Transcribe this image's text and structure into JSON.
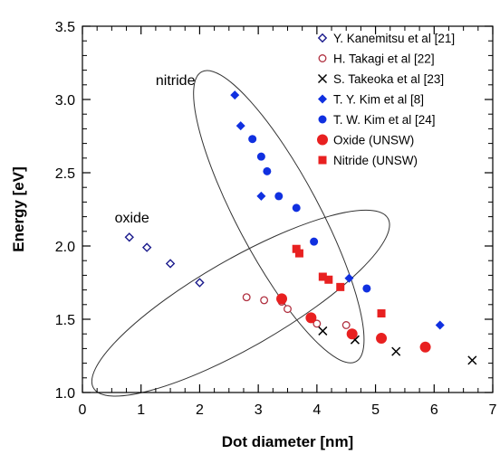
{
  "chart_data": {
    "type": "scatter",
    "xlabel": "Dot diameter [nm]",
    "ylabel": "Energy [eV]",
    "xlim": [
      0,
      7
    ],
    "ylim": [
      1.0,
      3.5
    ],
    "xticks": [
      "0",
      "1",
      "2",
      "3",
      "4",
      "5",
      "6",
      "7"
    ],
    "yticks": [
      "1.0",
      "1.5",
      "2.0",
      "2.5",
      "3.0",
      "3.5"
    ],
    "grid": false,
    "legend_position": "top-right",
    "annotations": [
      {
        "text": "nitride",
        "x": 1.25,
        "y": 3.1
      },
      {
        "text": "oxide",
        "x": 0.55,
        "y": 2.16
      }
    ],
    "groupings": [
      {
        "label": "nitride",
        "cx": 3.35,
        "cy": 2.2,
        "rx": 0.7,
        "ry": 1.12,
        "angle_deg": -28
      },
      {
        "label": "oxide",
        "cx": 2.7,
        "cy": 1.61,
        "rx": 2.9,
        "ry": 0.3,
        "angle_deg": -30
      }
    ],
    "series": [
      {
        "name": "Y. Kanemitsu et al [21]",
        "marker": "diamond-open",
        "color": "#1a1a8c",
        "points": [
          [
            0.8,
            2.06
          ],
          [
            1.1,
            1.99
          ],
          [
            1.5,
            1.88
          ],
          [
            2.0,
            1.75
          ]
        ]
      },
      {
        "name": "H. Takagi et al [22]",
        "marker": "circle-open",
        "color": "#b03040",
        "points": [
          [
            2.8,
            1.65
          ],
          [
            3.1,
            1.63
          ],
          [
            3.4,
            1.62
          ],
          [
            3.5,
            1.57
          ],
          [
            4.0,
            1.47
          ],
          [
            4.5,
            1.46
          ]
        ]
      },
      {
        "name": "S. Takeoka et al [23]",
        "marker": "x",
        "color": "#000000",
        "points": [
          [
            4.1,
            1.42
          ],
          [
            4.65,
            1.36
          ],
          [
            5.35,
            1.28
          ],
          [
            6.65,
            1.22
          ]
        ]
      },
      {
        "name": "T. Y. Kim et al [8]",
        "marker": "diamond-filled",
        "color": "#1030e0",
        "points": [
          [
            2.6,
            3.03
          ],
          [
            2.7,
            2.82
          ],
          [
            3.05,
            2.34
          ],
          [
            4.55,
            1.78
          ],
          [
            6.1,
            1.46
          ]
        ]
      },
      {
        "name": "T. W. Kim et al [24]",
        "marker": "circle-filled",
        "color": "#1030e0",
        "points": [
          [
            2.9,
            2.73
          ],
          [
            3.05,
            2.61
          ],
          [
            3.15,
            2.51
          ],
          [
            3.35,
            2.34
          ],
          [
            3.65,
            2.26
          ],
          [
            3.95,
            2.03
          ],
          [
            4.85,
            1.71
          ]
        ]
      },
      {
        "name": "Oxide (UNSW)",
        "marker": "circle-filled-large",
        "color": "#e82020",
        "points": [
          [
            3.4,
            1.64
          ],
          [
            3.9,
            1.51
          ],
          [
            4.6,
            1.4
          ],
          [
            5.1,
            1.37
          ],
          [
            5.85,
            1.31
          ]
        ]
      },
      {
        "name": "Nitride (UNSW)",
        "marker": "square-filled",
        "color": "#e82020",
        "points": [
          [
            3.65,
            1.98
          ],
          [
            3.7,
            1.95
          ],
          [
            4.1,
            1.79
          ],
          [
            4.2,
            1.77
          ],
          [
            4.4,
            1.72
          ],
          [
            5.1,
            1.54
          ]
        ]
      }
    ]
  }
}
